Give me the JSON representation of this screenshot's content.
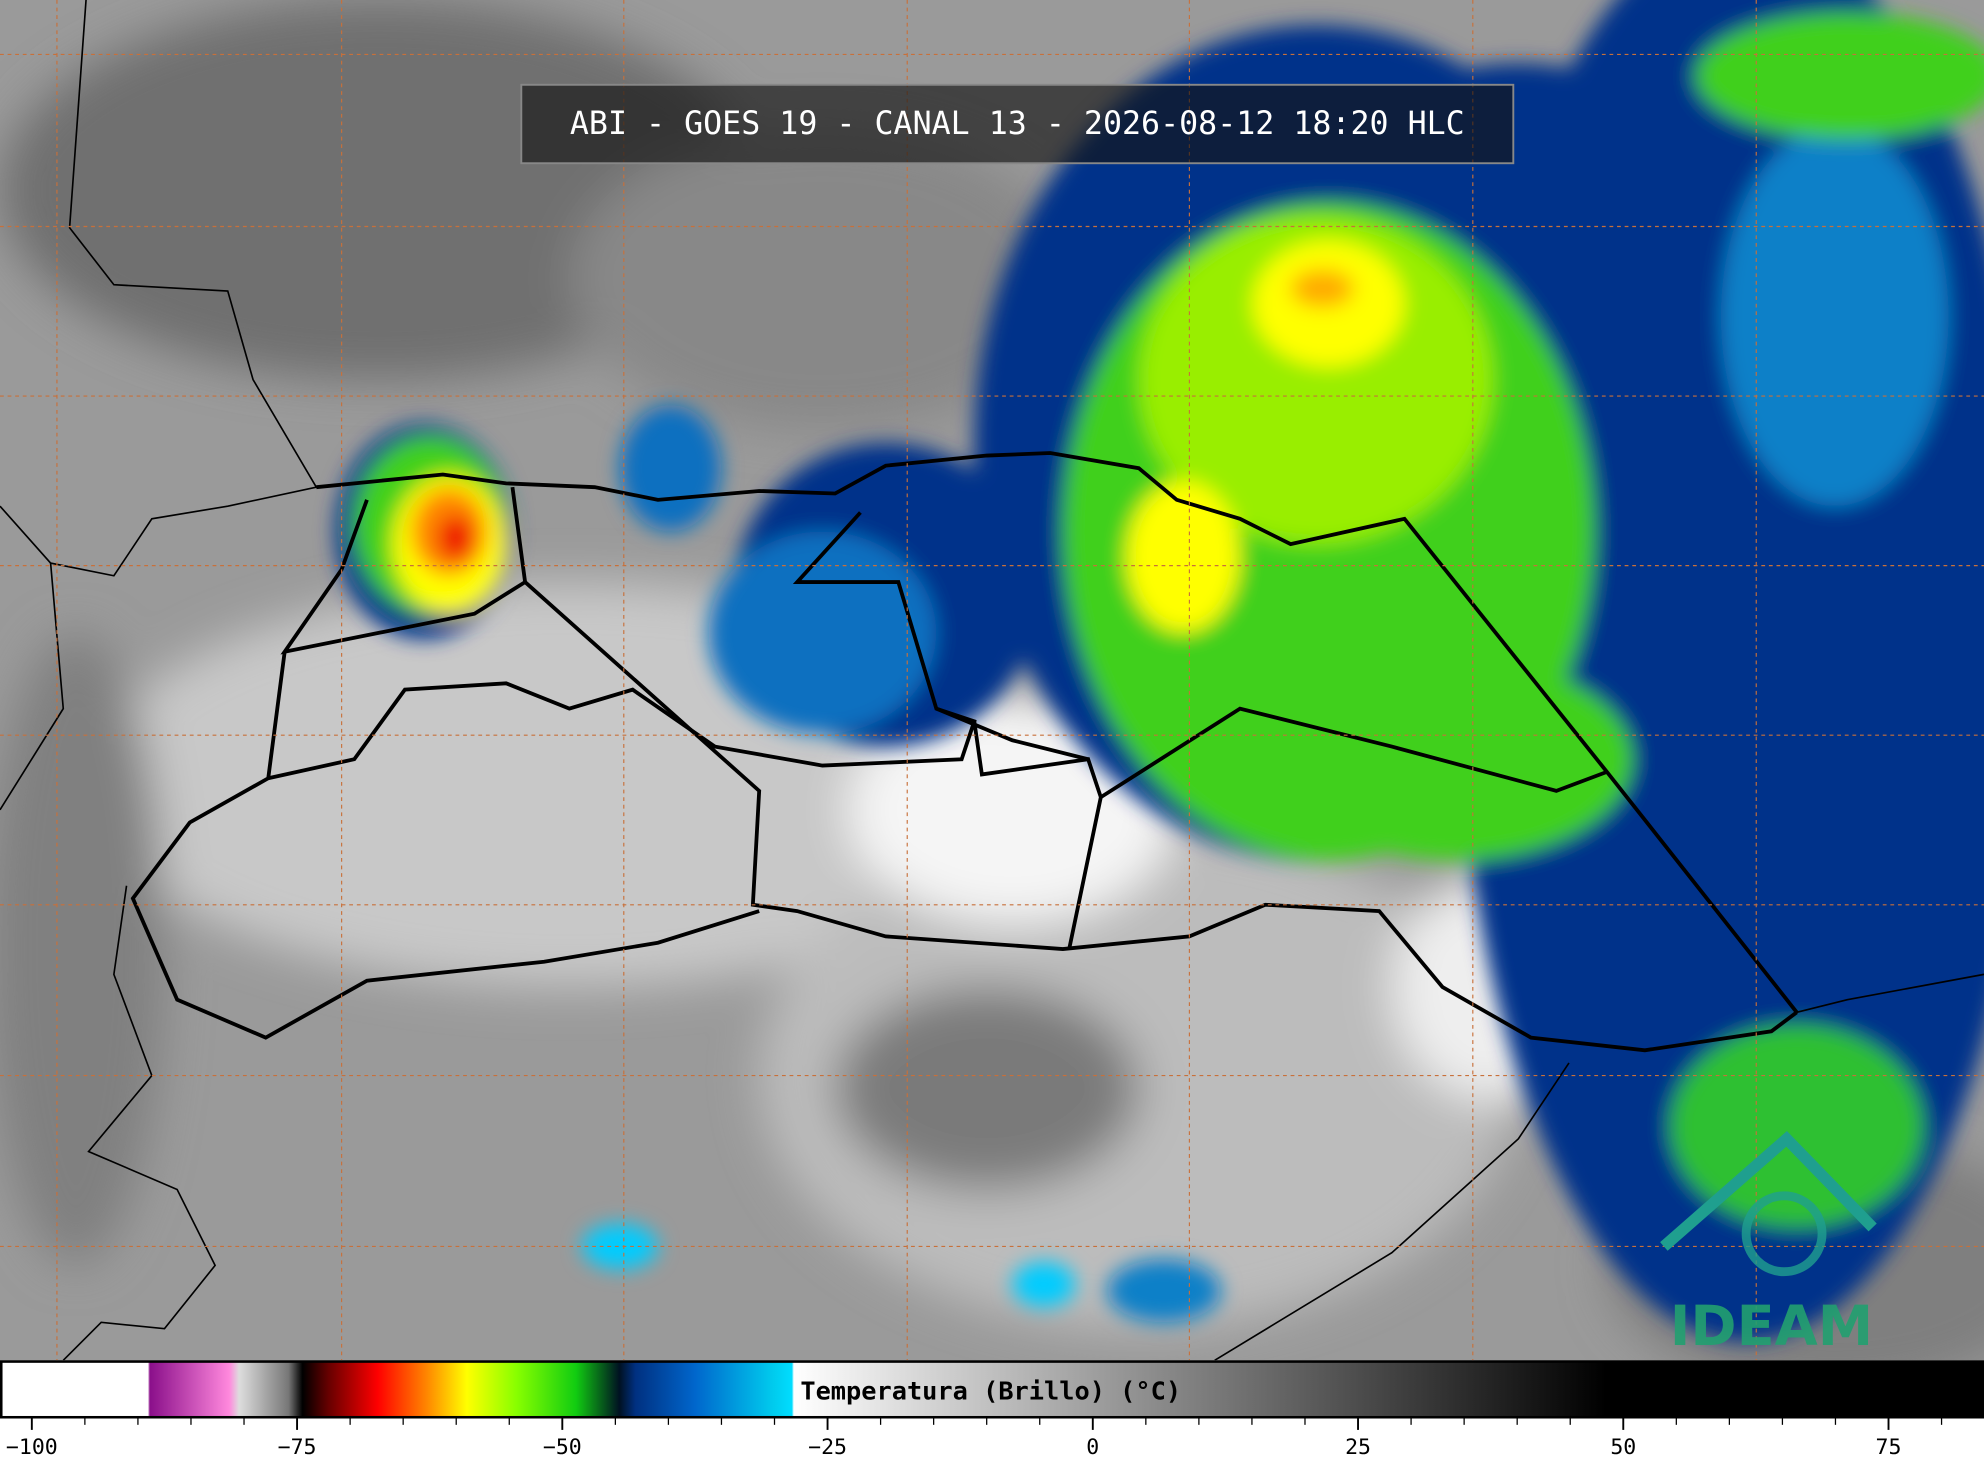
{
  "title": "ABI - GOES 19 - CANAL 13 - 2026-08-12 18:20 HLC",
  "colorbar": {
    "label": "Temperatura (Brillo) (°C)",
    "lim": [
      -103,
      84
    ],
    "ticks": [
      {
        "value": -100,
        "label": "−100"
      },
      {
        "value": -75,
        "label": "−75"
      },
      {
        "value": -50,
        "label": "−50"
      },
      {
        "value": -25,
        "label": "−25"
      },
      0,
      25,
      50,
      75
    ],
    "minor_ticks": [
      -95,
      -90,
      -85,
      -80,
      -70,
      -65,
      -60,
      -55,
      -45,
      -40,
      -35,
      -30,
      -20,
      -15,
      -10,
      -5,
      5,
      10,
      15,
      20,
      30,
      35,
      40,
      45,
      55,
      60,
      65,
      70,
      80
    ]
  },
  "logo": "IDEAM"
}
